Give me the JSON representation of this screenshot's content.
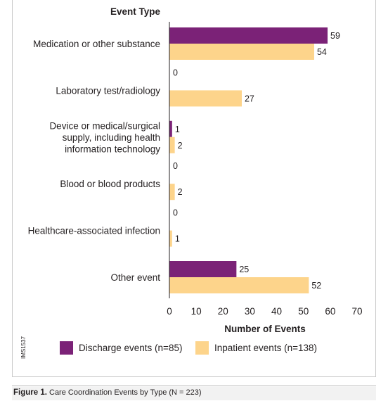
{
  "chart_data": {
    "type": "bar",
    "orientation": "horizontal",
    "y_header": "Event Type",
    "xlabel": "Number of Events",
    "xlim": [
      0,
      70
    ],
    "xticks": [
      0,
      10,
      20,
      30,
      40,
      50,
      60,
      70
    ],
    "grid": false,
    "legend_position": "bottom",
    "categories": [
      [
        "Medication or other substance"
      ],
      [
        "Laboratory test/radiology"
      ],
      [
        "Device or medical/surgical",
        "supply, including health",
        "information technology"
      ],
      [
        "Blood or blood products"
      ],
      [
        "Healthcare-associated infection"
      ],
      [
        "Other event"
      ]
    ],
    "series": [
      {
        "name": "Discharge events (n=85)",
        "color": "#7b2277",
        "values": [
          59,
          0,
          1,
          0,
          0,
          25
        ]
      },
      {
        "name": "Inpatient events (n=138)",
        "color": "#fdd48b",
        "values": [
          54,
          27,
          2,
          2,
          1,
          52
        ]
      }
    ],
    "figure_code": "IMS1537"
  },
  "caption": {
    "label": "Figure 1.",
    "text": "Care Coordination Events by Type (N = 223)"
  }
}
